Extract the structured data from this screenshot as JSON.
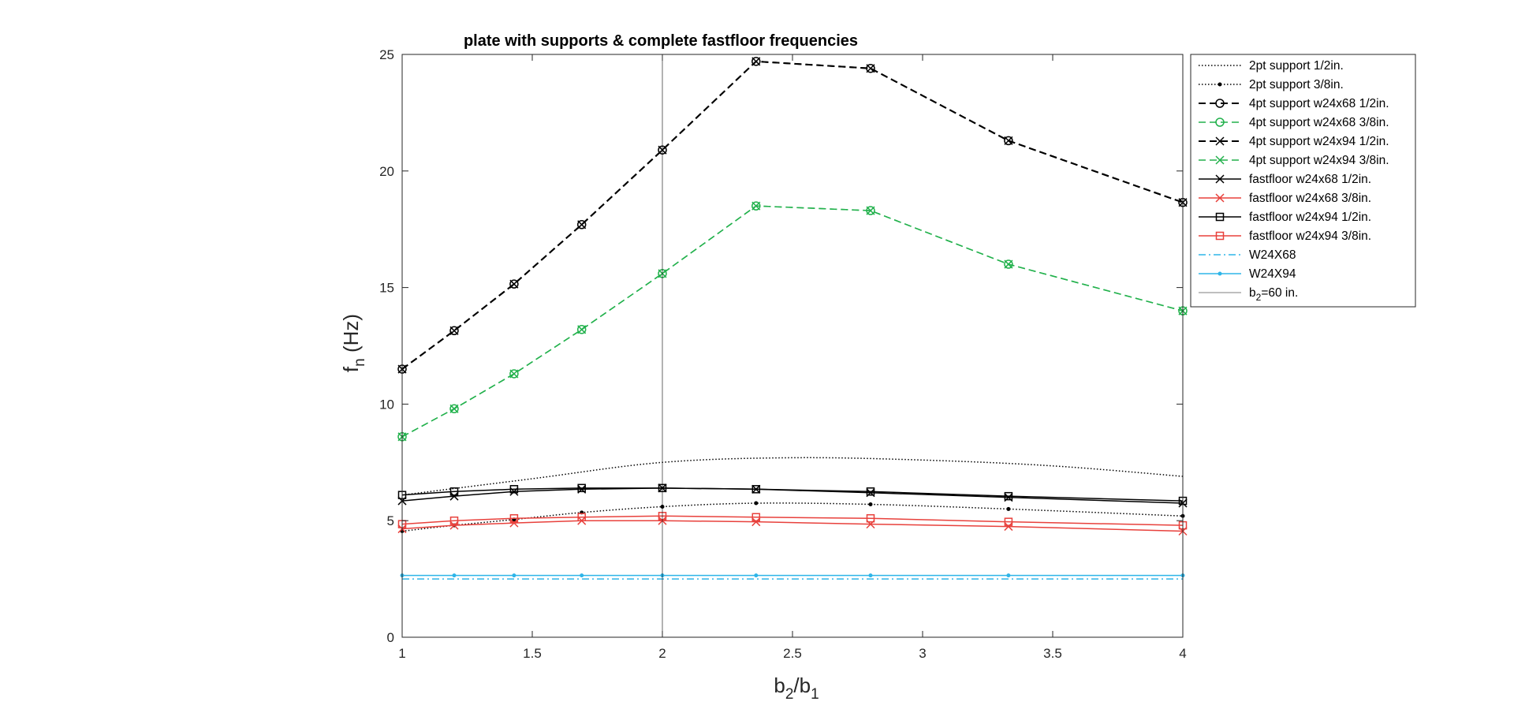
{
  "chart_data": {
    "type": "line",
    "title": "plate with supports & complete fastfloor frequencies",
    "xlabel": {
      "base": "b",
      "sub": "2",
      "mid": "/b",
      "sub2": "1"
    },
    "ylabel": {
      "base": "f",
      "sub": "n",
      "rest": " (Hz)"
    },
    "xlim": [
      1,
      4
    ],
    "ylim": [
      0,
      25
    ],
    "xticks": [
      1,
      1.5,
      2,
      2.5,
      3,
      3.5,
      4
    ],
    "xtick_labels": [
      "1",
      "1.5",
      "2",
      "2.5",
      "3",
      "3.5",
      "4"
    ],
    "yticks": [
      0,
      5,
      10,
      15,
      20,
      25
    ],
    "ytick_labels": [
      "0",
      "5",
      "10",
      "15",
      "20",
      "25"
    ],
    "grid": false,
    "legend_position": "outside-top-right",
    "x": [
      1,
      1.2,
      1.43,
      1.69,
      2,
      2.36,
      2.8,
      3.33,
      4
    ],
    "series": [
      {
        "name": "2pt support 1/2in.",
        "color": "#000000",
        "dash": "dotted",
        "marker": "none",
        "lw": 1.5,
        "smooth": true,
        "x": [
          1,
          1.5,
          2,
          2.5,
          3,
          3.5,
          4
        ],
        "values": [
          6.1,
          6.8,
          7.5,
          7.7,
          7.6,
          7.35,
          6.9
        ]
      },
      {
        "name": "2pt support 3/8in.",
        "color": "#000000",
        "dash": "dotted",
        "marker": "dot",
        "lw": 1.5,
        "smooth": true,
        "values": [
          4.55,
          4.8,
          5.05,
          5.35,
          5.6,
          5.75,
          5.7,
          5.5,
          5.2
        ]
      },
      {
        "name": "4pt support w24x68 1/2in.",
        "color": "#000000",
        "dash": "dashed",
        "marker": "circle",
        "lw": 2,
        "values": [
          11.5,
          13.15,
          15.15,
          17.7,
          20.9,
          24.7,
          24.4,
          21.3,
          18.65
        ]
      },
      {
        "name": "4pt support w24x68 3/8in.",
        "color": "#22b14c",
        "dash": "dashed",
        "marker": "circle",
        "lw": 1.5,
        "values": [
          8.6,
          9.8,
          11.3,
          13.2,
          15.6,
          18.5,
          18.3,
          16.0,
          14.0
        ]
      },
      {
        "name": "4pt support w24x94 1/2in.",
        "color": "#000000",
        "dash": "dashed",
        "marker": "x",
        "lw": 2,
        "values": [
          11.5,
          13.15,
          15.15,
          17.7,
          20.9,
          24.7,
          24.4,
          21.3,
          18.65
        ]
      },
      {
        "name": "4pt support w24x94 3/8in.",
        "color": "#22b14c",
        "dash": "dashed",
        "marker": "x",
        "lw": 1.5,
        "values": [
          8.6,
          9.8,
          11.3,
          13.2,
          15.6,
          18.5,
          18.3,
          16.0,
          14.0
        ]
      },
      {
        "name": "fastfloor w24x68 1/2in.",
        "color": "#000000",
        "dash": "solid",
        "marker": "x",
        "lw": 1.5,
        "values": [
          5.85,
          6.05,
          6.25,
          6.35,
          6.4,
          6.35,
          6.2,
          6.0,
          5.75
        ]
      },
      {
        "name": "fastfloor w24x68 3/8in.",
        "color": "#e8413c",
        "dash": "solid",
        "marker": "x",
        "lw": 1.5,
        "values": [
          4.65,
          4.8,
          4.9,
          5.0,
          5.0,
          4.95,
          4.85,
          4.75,
          4.55
        ]
      },
      {
        "name": "fastfloor w24x94 1/2in.",
        "color": "#000000",
        "dash": "solid",
        "marker": "square",
        "lw": 1.5,
        "values": [
          6.1,
          6.25,
          6.35,
          6.4,
          6.4,
          6.35,
          6.25,
          6.05,
          5.85
        ]
      },
      {
        "name": "fastfloor w24x94 3/8in.",
        "color": "#e8413c",
        "dash": "solid",
        "marker": "square",
        "lw": 1.5,
        "values": [
          4.85,
          5.0,
          5.1,
          5.15,
          5.2,
          5.15,
          5.1,
          4.95,
          4.8
        ]
      },
      {
        "name": "W24X68",
        "color": "#2eb5e8",
        "dash": "dashdot",
        "marker": "none",
        "lw": 1.5,
        "x": [
          1,
          4
        ],
        "values": [
          2.5,
          2.5
        ]
      },
      {
        "name": "W24X94",
        "color": "#2eb5e8",
        "dash": "solid",
        "marker": "dot",
        "lw": 1.5,
        "values": [
          2.65,
          2.65,
          2.65,
          2.65,
          2.65,
          2.65,
          2.65,
          2.65,
          2.65
        ]
      },
      {
        "name": "b",
        "name_sub": "2",
        "name_rest": "=60 in.",
        "color": "#000000",
        "dash": "solid",
        "marker": "none",
        "lw": 0.6,
        "x": [
          2,
          2
        ],
        "values": [
          0,
          25
        ]
      }
    ]
  }
}
